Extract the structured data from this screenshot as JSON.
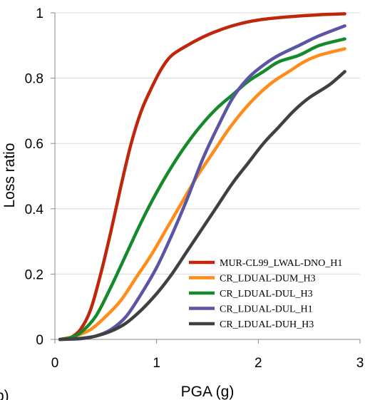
{
  "chart_data": {
    "type": "line",
    "title": "",
    "xlabel": "PGA (g)",
    "ylabel": "Loss ratio",
    "xlim": [
      0,
      3
    ],
    "ylim": [
      0,
      1
    ],
    "xticks": [
      0,
      1,
      2,
      3
    ],
    "yticks": [
      0,
      0.2,
      0.4,
      0.6,
      0.8,
      1
    ],
    "ytick_labels": [
      "0",
      "0.2",
      "0.4",
      "0.6",
      "0.8",
      "1"
    ],
    "grid": "horizontal",
    "legend_position": "bottom-right",
    "panel_label": "b)",
    "series": [
      {
        "name": "MUR-CL99_LWAL-DNO_H1",
        "color": "#c0260c",
        "points": [
          [
            0.05,
            0.0
          ],
          [
            0.15,
            0.005
          ],
          [
            0.25,
            0.03
          ],
          [
            0.35,
            0.09
          ],
          [
            0.45,
            0.2
          ],
          [
            0.55,
            0.33
          ],
          [
            0.65,
            0.47
          ],
          [
            0.75,
            0.6
          ],
          [
            0.85,
            0.7
          ],
          [
            0.95,
            0.77
          ],
          [
            1.05,
            0.83
          ],
          [
            1.15,
            0.87
          ],
          [
            1.3,
            0.9
          ],
          [
            1.45,
            0.925
          ],
          [
            1.6,
            0.945
          ],
          [
            1.8,
            0.965
          ],
          [
            2.0,
            0.978
          ],
          [
            2.3,
            0.988
          ],
          [
            2.6,
            0.994
          ],
          [
            2.85,
            0.997
          ]
        ]
      },
      {
        "name": "CR_LDUAL-DUM_H3",
        "color": "#ff8c1a",
        "points": [
          [
            0.05,
            0.0
          ],
          [
            0.2,
            0.01
          ],
          [
            0.35,
            0.03
          ],
          [
            0.5,
            0.07
          ],
          [
            0.65,
            0.12
          ],
          [
            0.8,
            0.19
          ],
          [
            0.95,
            0.26
          ],
          [
            1.1,
            0.34
          ],
          [
            1.25,
            0.42
          ],
          [
            1.4,
            0.5
          ],
          [
            1.55,
            0.57
          ],
          [
            1.7,
            0.64
          ],
          [
            1.85,
            0.7
          ],
          [
            2.0,
            0.75
          ],
          [
            2.15,
            0.79
          ],
          [
            2.3,
            0.82
          ],
          [
            2.45,
            0.85
          ],
          [
            2.6,
            0.87
          ],
          [
            2.85,
            0.89
          ]
        ]
      },
      {
        "name": "CR_LDUAL-DUL_H3",
        "color": "#158a2a",
        "points": [
          [
            0.05,
            0.0
          ],
          [
            0.15,
            0.005
          ],
          [
            0.25,
            0.02
          ],
          [
            0.4,
            0.07
          ],
          [
            0.55,
            0.16
          ],
          [
            0.7,
            0.26
          ],
          [
            0.85,
            0.36
          ],
          [
            1.0,
            0.45
          ],
          [
            1.15,
            0.53
          ],
          [
            1.3,
            0.6
          ],
          [
            1.45,
            0.66
          ],
          [
            1.6,
            0.71
          ],
          [
            1.75,
            0.75
          ],
          [
            1.9,
            0.79
          ],
          [
            2.05,
            0.82
          ],
          [
            2.2,
            0.85
          ],
          [
            2.4,
            0.87
          ],
          [
            2.6,
            0.9
          ],
          [
            2.85,
            0.92
          ]
        ]
      },
      {
        "name": "CR_LDUAL-DUL_H1",
        "color": "#5a55a5",
        "points": [
          [
            0.05,
            0.0
          ],
          [
            0.25,
            0.002
          ],
          [
            0.4,
            0.01
          ],
          [
            0.55,
            0.03
          ],
          [
            0.7,
            0.07
          ],
          [
            0.85,
            0.14
          ],
          [
            1.0,
            0.22
          ],
          [
            1.15,
            0.32
          ],
          [
            1.3,
            0.43
          ],
          [
            1.45,
            0.55
          ],
          [
            1.6,
            0.65
          ],
          [
            1.75,
            0.74
          ],
          [
            1.9,
            0.8
          ],
          [
            2.05,
            0.84
          ],
          [
            2.2,
            0.87
          ],
          [
            2.4,
            0.9
          ],
          [
            2.6,
            0.93
          ],
          [
            2.85,
            0.96
          ]
        ]
      },
      {
        "name": "CR_LDUAL-DUH_H3",
        "color": "#404040",
        "points": [
          [
            0.05,
            0.0
          ],
          [
            0.25,
            0.003
          ],
          [
            0.4,
            0.01
          ],
          [
            0.55,
            0.025
          ],
          [
            0.7,
            0.05
          ],
          [
            0.85,
            0.09
          ],
          [
            1.0,
            0.14
          ],
          [
            1.15,
            0.2
          ],
          [
            1.3,
            0.27
          ],
          [
            1.45,
            0.34
          ],
          [
            1.6,
            0.41
          ],
          [
            1.75,
            0.48
          ],
          [
            1.9,
            0.54
          ],
          [
            2.05,
            0.6
          ],
          [
            2.2,
            0.65
          ],
          [
            2.35,
            0.7
          ],
          [
            2.5,
            0.74
          ],
          [
            2.7,
            0.78
          ],
          [
            2.85,
            0.82
          ]
        ]
      }
    ]
  }
}
